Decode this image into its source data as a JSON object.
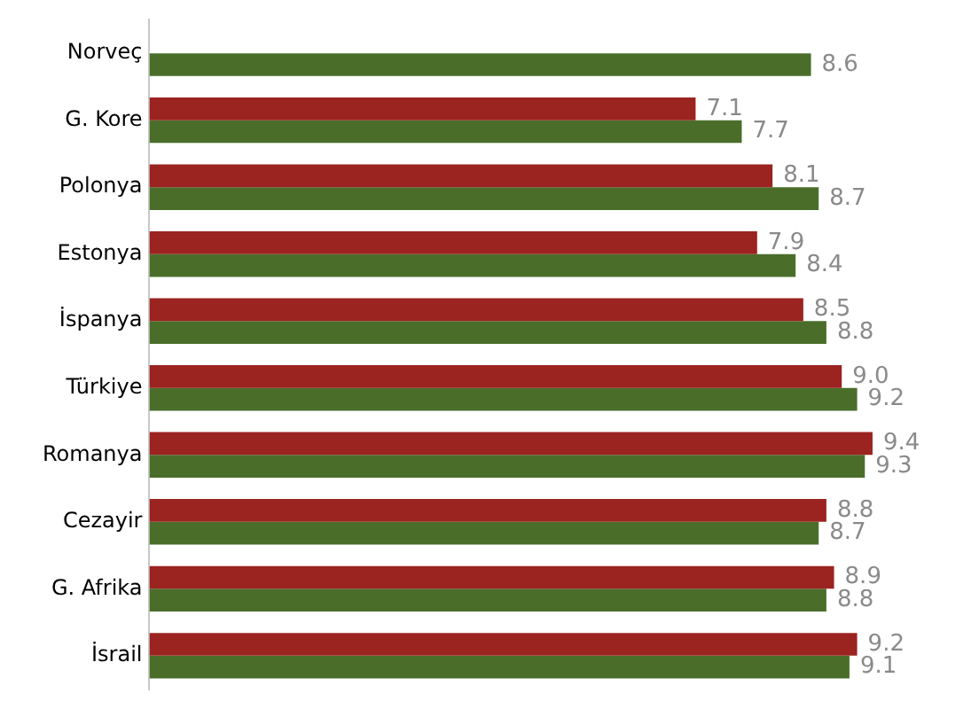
{
  "chart_data": {
    "type": "bar",
    "orientation": "horizontal",
    "categories": [
      "Norveç",
      "G. Kore",
      "Polonya",
      "Estonya",
      "İspanya",
      "Türkiye",
      "Romanya",
      "Cezayir",
      "G. Afrika",
      "İsrail"
    ],
    "series": [
      {
        "color": "#9b2320",
        "values": [
          null,
          7.1,
          8.1,
          7.9,
          8.5,
          9.0,
          9.4,
          8.8,
          8.9,
          9.2
        ],
        "value_labels": [
          null,
          "7.1",
          "8.1",
          "7.9",
          "8.5",
          "9.0",
          "9.4",
          "8.8",
          "8.9",
          "9.2"
        ]
      },
      {
        "color": "#4a6e2a",
        "values": [
          8.6,
          7.7,
          8.7,
          8.4,
          8.8,
          9.2,
          9.3,
          8.7,
          8.8,
          9.1
        ],
        "value_labels": [
          "8.6",
          "7.7",
          "8.7",
          "8.4",
          "8.8",
          "9.2",
          "9.3",
          "8.7",
          "8.8",
          "9.1"
        ]
      }
    ],
    "tick_labels": "y",
    "grid": false,
    "legend": false
  }
}
